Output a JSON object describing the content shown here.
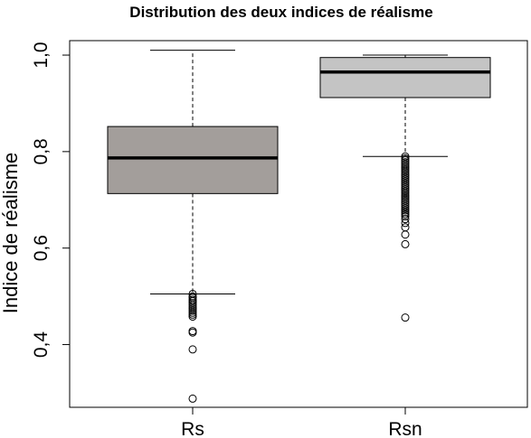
{
  "chart_data": {
    "type": "boxplot",
    "title": "Distribution des deux indices de réalisme",
    "xlabel": "",
    "ylabel": "Indice de réalisme",
    "ylim": [
      0.27,
      1.03
    ],
    "yticks": [
      0.4,
      0.6,
      0.8,
      1.0
    ],
    "ytick_labels": [
      "0,4",
      "0,6",
      "0,8",
      "1,0"
    ],
    "categories": [
      "Rs",
      "Rsn"
    ],
    "colors": {
      "Rs": "#a39e9b",
      "Rsn": "#c4c4c4"
    },
    "boxes": [
      {
        "name": "Rs",
        "whisker_low": 0.505,
        "q1": 0.713,
        "median": 0.787,
        "q3": 0.852,
        "whisker_high": 1.01,
        "outliers": [
          0.505,
          0.5,
          0.497,
          0.493,
          0.49,
          0.486,
          0.482,
          0.478,
          0.474,
          0.47,
          0.466,
          0.462,
          0.458,
          0.428,
          0.425,
          0.39,
          0.288
        ]
      },
      {
        "name": "Rsn",
        "whisker_low": 0.79,
        "q1": 0.912,
        "median": 0.965,
        "q3": 0.995,
        "whisker_high": 1.0,
        "outliers": [
          0.79,
          0.786,
          0.782,
          0.778,
          0.774,
          0.77,
          0.766,
          0.762,
          0.758,
          0.754,
          0.75,
          0.746,
          0.742,
          0.738,
          0.734,
          0.73,
          0.726,
          0.722,
          0.718,
          0.714,
          0.71,
          0.706,
          0.702,
          0.698,
          0.694,
          0.69,
          0.686,
          0.682,
          0.678,
          0.674,
          0.67,
          0.666,
          0.66,
          0.652,
          0.643,
          0.628,
          0.608,
          0.456
        ]
      }
    ]
  }
}
